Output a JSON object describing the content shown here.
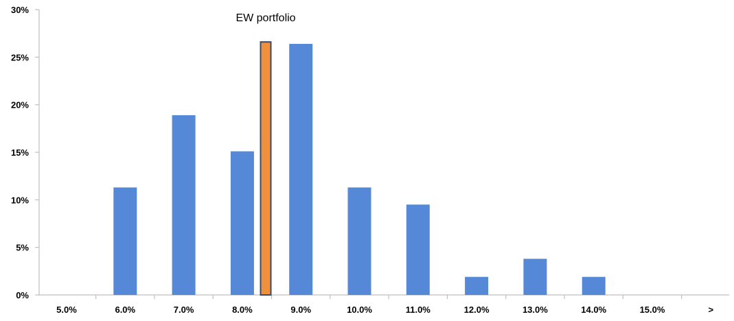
{
  "chart_data": {
    "type": "bar",
    "categories": [
      "5.0%",
      "6.0%",
      "7.0%",
      "8.0%",
      "9.0%",
      "10.0%",
      "11.0%",
      "12.0%",
      "13.0%",
      "14.0%",
      "15.0%",
      ">"
    ],
    "series": [
      {
        "values": [
          0,
          11.3,
          18.9,
          15.1,
          26.4,
          11.3,
          9.5,
          1.9,
          3.8,
          1.9,
          0,
          0
        ]
      }
    ],
    "highlight": {
      "label": "EW portfolio",
      "x": 8.4,
      "value": 26.6
    },
    "yticks": [
      "0%",
      "5%",
      "10%",
      "15%",
      "20%",
      "25%",
      "30%"
    ],
    "ylim": [
      0,
      30
    ],
    "grid": false,
    "colors": {
      "bars": "#5588d6",
      "highlight_fill": "#f0903a",
      "highlight_stroke": "#2f4f7a",
      "axis": "#bfbfbf"
    }
  }
}
